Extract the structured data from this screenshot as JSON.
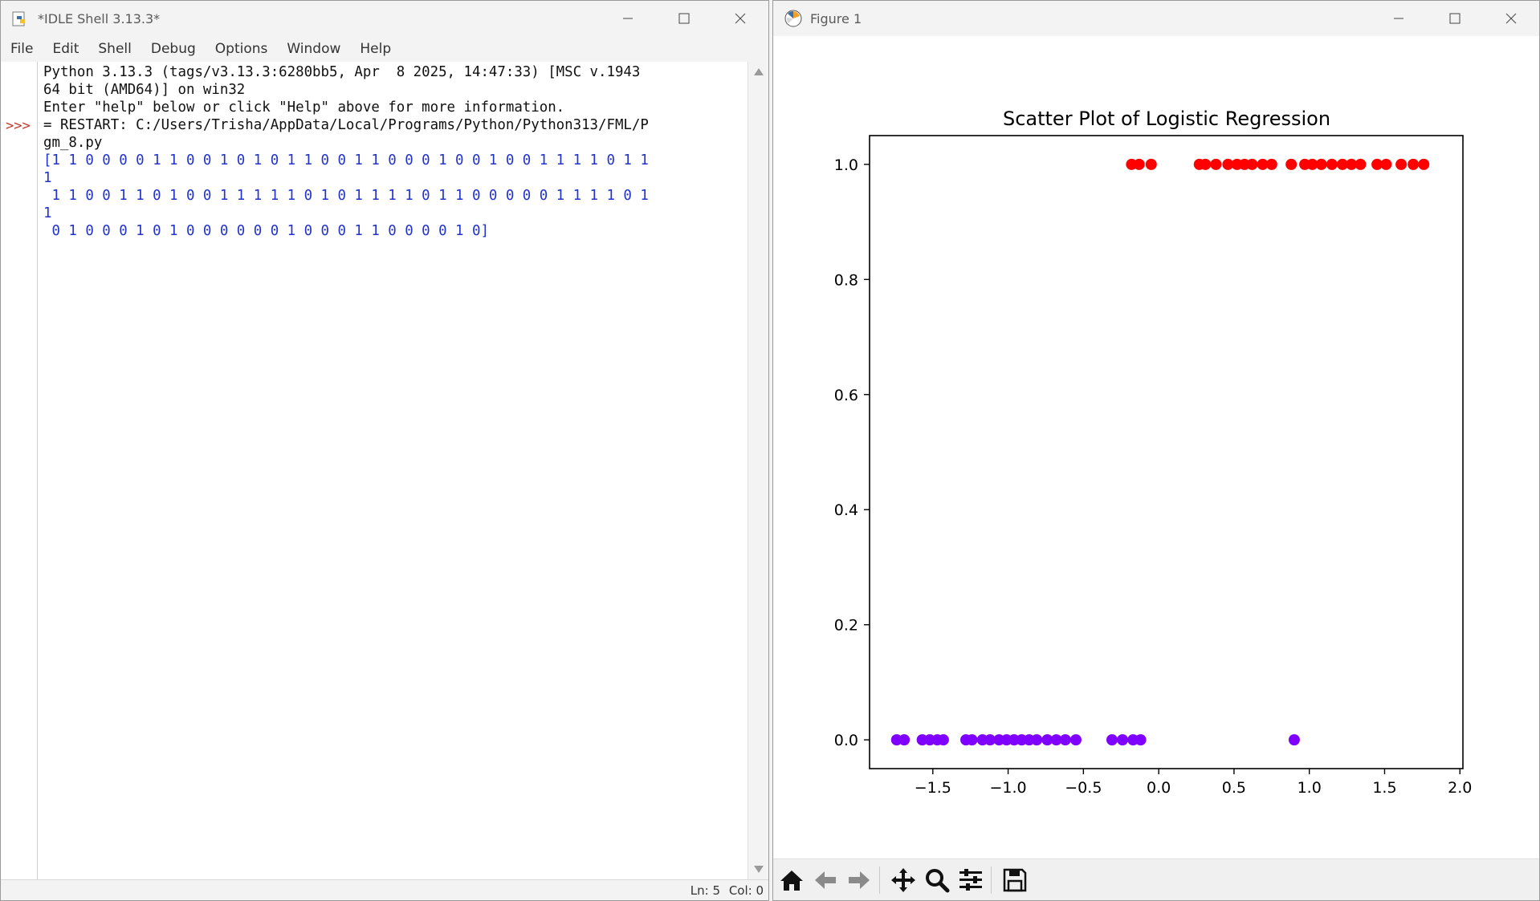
{
  "idle": {
    "title": "*IDLE Shell 3.13.3*",
    "menu": [
      "File",
      "Edit",
      "Shell",
      "Debug",
      "Options",
      "Window",
      "Help"
    ],
    "prompt": ">>>",
    "lines": [
      "Python 3.13.3 (tags/v3.13.3:6280bb5, Apr  8 2025, 14:47:33) [MSC v.1943",
      "64 bit (AMD64)] on win32",
      "Enter \"help\" below or click \"Help\" above for more information.",
      "",
      "= RESTART: C:/Users/Trisha/AppData/Local/Programs/Python/Python313/FML/P",
      "gm_8.py"
    ],
    "output_lines": [
      "[1 1 0 0 0 0 1 1 0 0 1 0 1 0 1 1 0 0 1 1 0 0 0 1 0 0 1 0 0 1 1 1 1 0 1 1",
      "1",
      " 1 1 0 0 1 1 0 1 0 0 1 1 1 1 1 0 1 0 1 1 1 1 0 1 1 0 0 0 0 0 1 1 1 1 0 1",
      "1",
      " 0 1 0 0 0 1 0 1 0 0 0 0 0 0 1 0 0 0 1 1 0 0 0 0 1 0]"
    ],
    "status": {
      "ln": "Ln: 5",
      "col": "Col: 0"
    }
  },
  "figure": {
    "title": "Figure 1",
    "toolbar": [
      "home-icon",
      "back-arrow-icon",
      "forward-arrow-icon",
      "pan-icon",
      "zoom-icon",
      "configure-subplots-icon",
      "save-icon"
    ]
  },
  "chart_data": {
    "type": "scatter",
    "title": "Scatter Plot of Logistic Regression",
    "xlabel": "",
    "ylabel": "",
    "xlim": [
      -1.92,
      2.02
    ],
    "ylim": [
      -0.05,
      1.05
    ],
    "xticks": [
      "−1.5",
      "−1.0",
      "−0.5",
      "0.0",
      "0.5",
      "1.0",
      "1.5",
      "2.0"
    ],
    "xtick_values": [
      -1.5,
      -1.0,
      -0.5,
      0.0,
      0.5,
      1.0,
      1.5,
      2.0
    ],
    "yticks": [
      "0.0",
      "0.2",
      "0.4",
      "0.6",
      "0.8",
      "1.0"
    ],
    "ytick_values": [
      0.0,
      0.2,
      0.4,
      0.6,
      0.8,
      1.0
    ],
    "grid": false,
    "series": [
      {
        "color": "#ff0000",
        "x": [
          -0.18,
          -0.13,
          -0.05,
          0.27,
          0.31,
          0.38,
          0.46,
          0.52,
          0.57,
          0.62,
          0.69,
          0.75,
          0.88,
          0.97,
          1.02,
          1.08,
          1.15,
          1.22,
          1.28,
          1.34,
          1.45,
          1.51,
          1.61,
          1.69,
          1.76
        ],
        "y": [
          1,
          1,
          1,
          1,
          1,
          1,
          1,
          1,
          1,
          1,
          1,
          1,
          1,
          1,
          1,
          1,
          1,
          1,
          1,
          1,
          1,
          1,
          1,
          1,
          1
        ]
      },
      {
        "color": "#7f00ff",
        "x": [
          -1.74,
          -1.69,
          -1.57,
          -1.52,
          -1.47,
          -1.43,
          -1.28,
          -1.24,
          -1.17,
          -1.12,
          -1.06,
          -1.01,
          -0.96,
          -0.91,
          -0.86,
          -0.81,
          -0.74,
          -0.68,
          -0.62,
          -0.55,
          -0.31,
          -0.24,
          -0.17,
          -0.12,
          0.9
        ],
        "y": [
          0,
          0,
          0,
          0,
          0,
          0,
          0,
          0,
          0,
          0,
          0,
          0,
          0,
          0,
          0,
          0,
          0,
          0,
          0,
          0,
          0,
          0,
          0,
          0,
          0
        ]
      }
    ]
  }
}
